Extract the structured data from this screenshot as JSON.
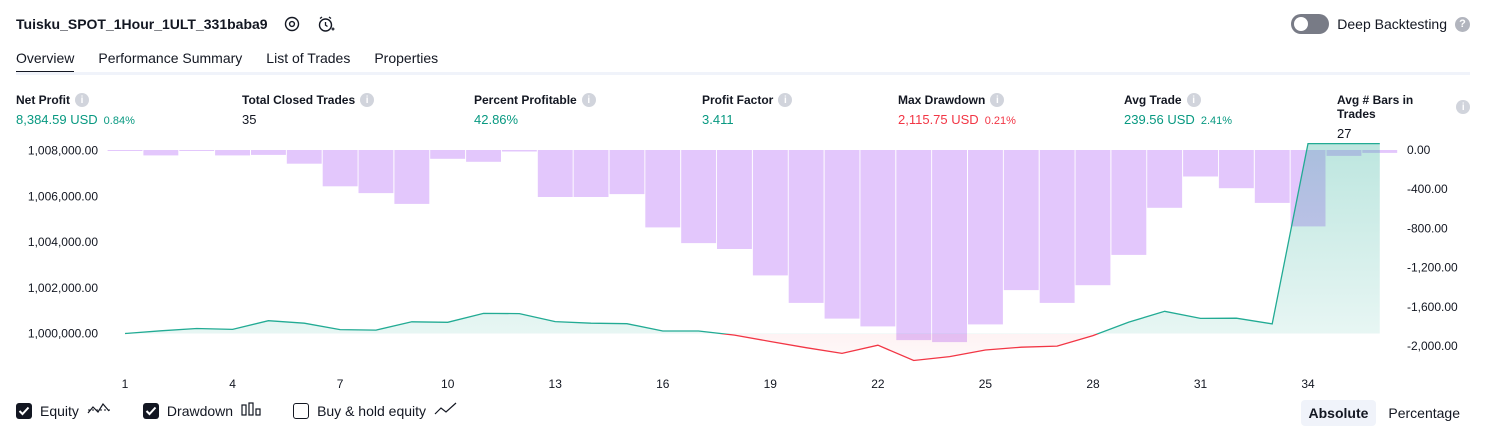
{
  "header": {
    "strategy_name": "Tuisku_SPOT_1Hour_1ULT_331baba9",
    "settings_icon": "gear-icon",
    "alert_icon": "add-alert-icon"
  },
  "deep_backtesting": {
    "label": "Deep Backtesting",
    "enabled": false,
    "help": "?"
  },
  "tabs": [
    {
      "label": "Overview",
      "active": true
    },
    {
      "label": "Performance Summary",
      "active": false
    },
    {
      "label": "List of Trades",
      "active": false
    },
    {
      "label": "Properties",
      "active": false
    }
  ],
  "metrics": [
    {
      "label": "Net Profit",
      "value": "8,384.59 USD",
      "pct": "0.84%",
      "tone": "green"
    },
    {
      "label": "Total Closed Trades",
      "value": "35",
      "pct": "",
      "tone": "dark"
    },
    {
      "label": "Percent Profitable",
      "value": "42.86%",
      "pct": "",
      "tone": "green"
    },
    {
      "label": "Profit Factor",
      "value": "3.411",
      "pct": "",
      "tone": "green"
    },
    {
      "label": "Max Drawdown",
      "value": "2,115.75 USD",
      "pct": "0.21%",
      "tone": "red"
    },
    {
      "label": "Avg Trade",
      "value": "239.56 USD",
      "pct": "2.41%",
      "tone": "green"
    },
    {
      "label": "Avg # Bars in Trades",
      "value": "27",
      "pct": "",
      "tone": "dark"
    }
  ],
  "info_glyph": "i",
  "legend": {
    "equity": {
      "label": "Equity",
      "checked": true
    },
    "drawdown": {
      "label": "Drawdown",
      "checked": true
    },
    "buy_hold": {
      "label": "Buy & hold equity",
      "checked": false
    }
  },
  "modes": {
    "absolute": "Absolute",
    "percentage": "Percentage",
    "selected": "absolute"
  },
  "colors": {
    "equity_line": "#22ab94",
    "equity_fill": "#d4f0e9",
    "equity_neg_line": "#f23645",
    "drawdown_bar": "#e1c4fc",
    "drawdown_border": "#c599f7",
    "text": "#131722",
    "green": "#089981",
    "red": "#f23645"
  },
  "chart_data": {
    "type": "line+bar",
    "x_ticks": [
      "1",
      "4",
      "7",
      "10",
      "13",
      "16",
      "19",
      "22",
      "25",
      "28",
      "31",
      "34"
    ],
    "left_axis": {
      "ticks": [
        "1,000,000.00",
        "1,002,000.00",
        "1,004,000.00",
        "1,006,000.00",
        "1,008,000.00"
      ],
      "range": [
        999000,
        1008300
      ],
      "baseline": 1000000
    },
    "right_axis": {
      "ticks": [
        "0.00",
        "-400.00",
        "-800.00",
        "-1,200.00",
        "-1,600.00",
        "-2,000.00"
      ],
      "range": [
        -2100,
        0
      ]
    },
    "series": [
      {
        "kind": "equity",
        "x": [
          1,
          2,
          3,
          4,
          5,
          6,
          7,
          8,
          9,
          10,
          11,
          12,
          13,
          14,
          15,
          16,
          17,
          18,
          19,
          20,
          21,
          22,
          23,
          24,
          25,
          26,
          27,
          28,
          29,
          30,
          31,
          32,
          33,
          34,
          35,
          36
        ],
        "values": [
          1000000,
          1000120,
          1000220,
          1000180,
          1000560,
          1000450,
          1000170,
          1000150,
          1000510,
          1000490,
          1000880,
          1000870,
          1000520,
          1000450,
          1000430,
          1000110,
          1000110,
          999930,
          999650,
          999380,
          999130,
          999490,
          998820,
          998990,
          999280,
          999400,
          999450,
          999910,
          1000500,
          1000970,
          1000660,
          1000670,
          1000420,
          1008300,
          1008300,
          1008300
        ]
      },
      {
        "kind": "drawdown",
        "x": [
          1,
          2,
          3,
          4,
          5,
          6,
          7,
          8,
          9,
          10,
          11,
          12,
          13,
          14,
          15,
          16,
          17,
          18,
          19,
          20,
          21,
          22,
          23,
          24,
          25,
          26,
          27,
          28,
          29,
          30,
          31,
          32,
          33,
          34,
          35,
          36
        ],
        "values": [
          0,
          -55,
          -10,
          -55,
          -50,
          -140,
          -370,
          -440,
          -550,
          -90,
          -120,
          -15,
          -480,
          -480,
          -450,
          -790,
          -950,
          -1010,
          -1280,
          -1560,
          -1720,
          -1800,
          -1940,
          -1960,
          -1780,
          -1430,
          -1560,
          -1380,
          -1070,
          -590,
          -270,
          -390,
          -540,
          -780,
          -60,
          -30
        ]
      }
    ]
  }
}
